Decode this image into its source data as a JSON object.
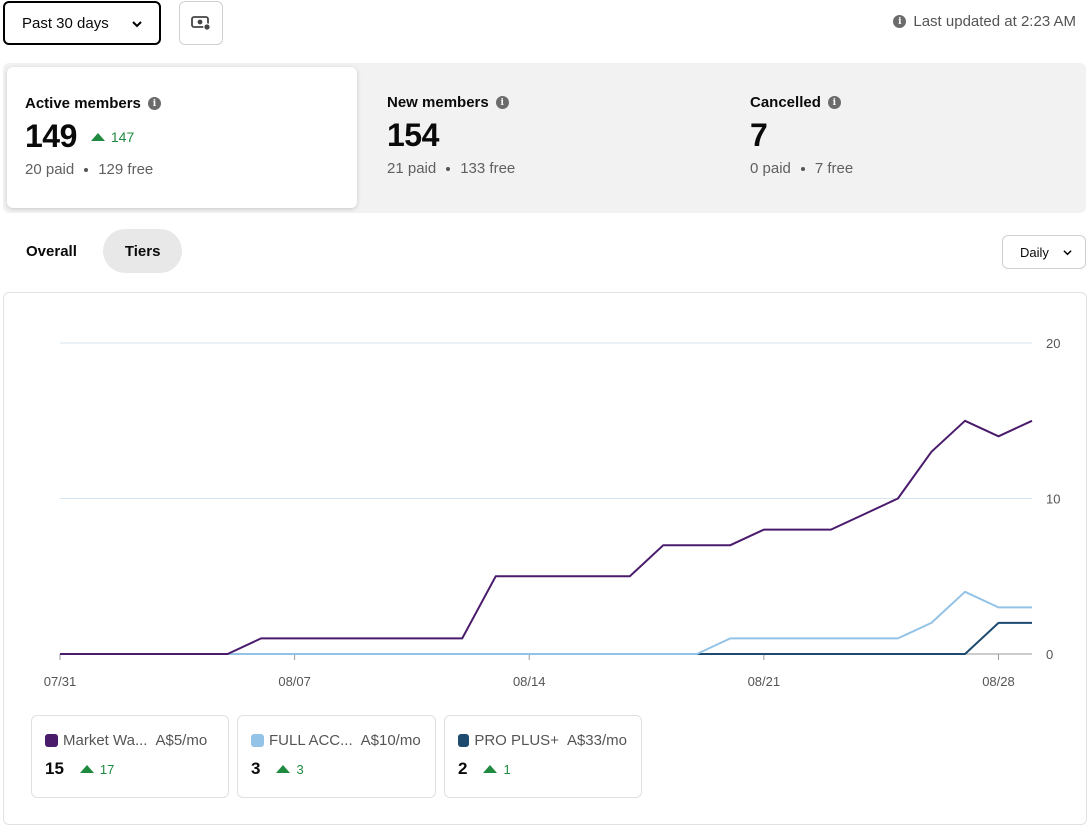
{
  "toolbar": {
    "range_label": "Past 30 days",
    "last_updated": "Last updated at 2:23 AM"
  },
  "stats": {
    "active": {
      "label": "Active members",
      "value": "149",
      "delta": "147",
      "paid": "20 paid",
      "free": "129 free"
    },
    "new": {
      "label": "New members",
      "value": "154",
      "paid": "21 paid",
      "free": "133 free"
    },
    "cancelled": {
      "label": "Cancelled",
      "value": "7",
      "paid": "0 paid",
      "free": "7 free"
    }
  },
  "tabs": {
    "overall": "Overall",
    "tiers": "Tiers"
  },
  "interval_label": "Daily",
  "colors": {
    "accent_green": "#1f8a3f",
    "market": "#4a1a6b",
    "full": "#93c3e6",
    "pro": "#1d4a6e",
    "grid": "#d6e6f0"
  },
  "tiers": [
    {
      "name": "Market Wa...",
      "price": "A$5/mo",
      "count": "15",
      "delta": "17",
      "color": "#4a1a6b"
    },
    {
      "name": "FULL ACC...",
      "price": "A$10/mo",
      "count": "3",
      "delta": "3",
      "color": "#93c3e6"
    },
    {
      "name": "PRO PLUS+",
      "price": "A$33/mo",
      "count": "2",
      "delta": "1",
      "color": "#1d4a6e"
    }
  ],
  "chart_data": {
    "type": "line",
    "x": [
      "07/31",
      "08/01",
      "08/02",
      "08/03",
      "08/04",
      "08/05",
      "08/06",
      "08/07",
      "08/08",
      "08/09",
      "08/10",
      "08/11",
      "08/12",
      "08/13",
      "08/14",
      "08/15",
      "08/16",
      "08/17",
      "08/18",
      "08/19",
      "08/20",
      "08/21",
      "08/22",
      "08/23",
      "08/24",
      "08/25",
      "08/26",
      "08/27",
      "08/28",
      "08/29"
    ],
    "x_ticks": [
      "07/31",
      "08/07",
      "08/14",
      "08/21",
      "08/28"
    ],
    "ylim": [
      0,
      20
    ],
    "y_ticks": [
      "0",
      "10",
      "20"
    ],
    "grid": true,
    "series": [
      {
        "name": "Market Wa...",
        "color": "#4a1a6b",
        "values": [
          0,
          0,
          0,
          0,
          0,
          0,
          1,
          1,
          1,
          1,
          1,
          1,
          1,
          5,
          5,
          5,
          5,
          5,
          7,
          7,
          7,
          8,
          8,
          8,
          9,
          10,
          13,
          15,
          14,
          15
        ]
      },
      {
        "name": "FULL ACC...",
        "color": "#93c3e6",
        "values": [
          0,
          0,
          0,
          0,
          0,
          0,
          0,
          0,
          0,
          0,
          0,
          0,
          0,
          0,
          0,
          0,
          0,
          0,
          0,
          0,
          1,
          1,
          1,
          1,
          1,
          1,
          2,
          4,
          3,
          3
        ]
      },
      {
        "name": "PRO PLUS+",
        "color": "#1d4a6e",
        "values": [
          0,
          0,
          0,
          0,
          0,
          0,
          0,
          0,
          0,
          0,
          0,
          0,
          0,
          0,
          0,
          0,
          0,
          0,
          0,
          0,
          0,
          0,
          0,
          0,
          0,
          0,
          0,
          0,
          2,
          2
        ]
      }
    ]
  }
}
